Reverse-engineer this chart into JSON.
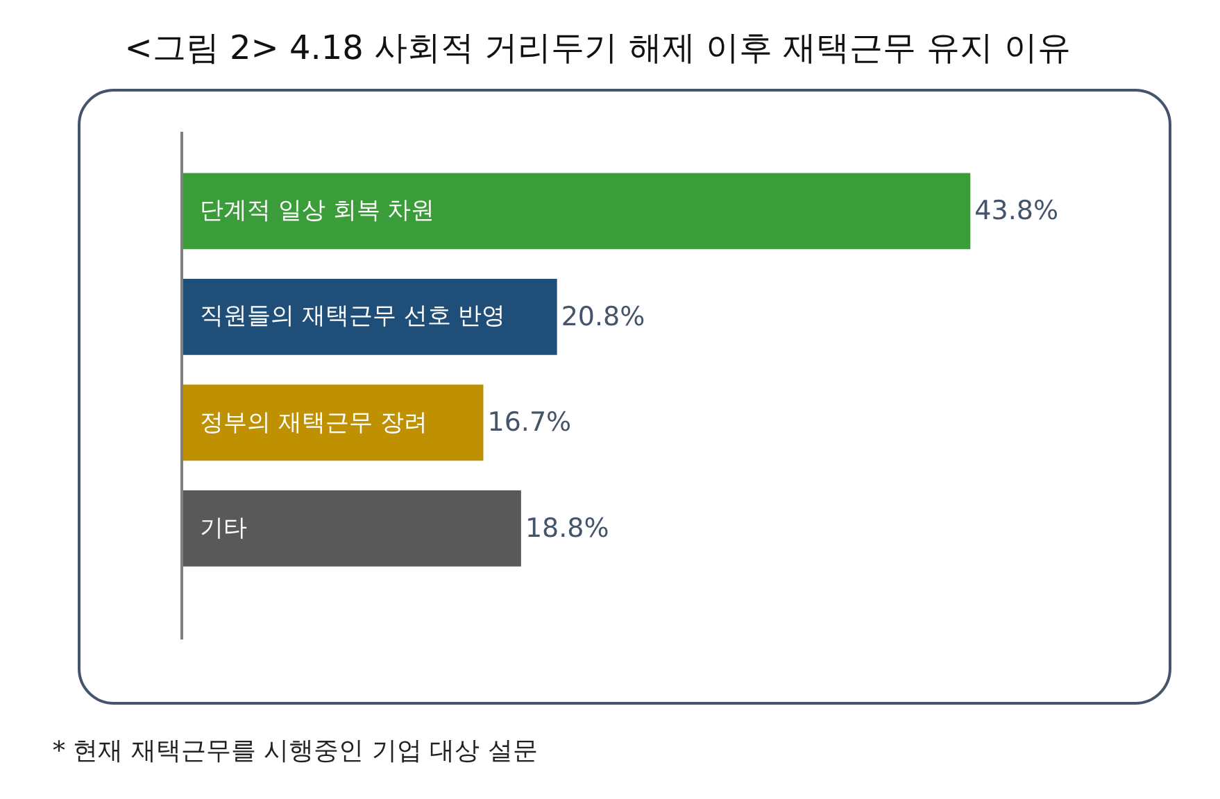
{
  "chart_data": {
    "type": "bar",
    "orientation": "horizontal",
    "title": "<그림 2> 4.18 사회적 거리두기 해제 이후 재택근무 유지 이유",
    "categories": [
      "단계적 일상 회복 차원",
      "직원들의 재택근무 선호 반영",
      "정부의 재택근무 장려",
      "기타"
    ],
    "values": [
      43.8,
      20.8,
      16.7,
      18.8
    ],
    "colors": [
      "#3a9d3a",
      "#1f4e79",
      "#bf9000",
      "#595959"
    ],
    "value_labels": [
      "43.8%",
      "20.8%",
      "16.7%",
      "18.8%"
    ],
    "grid": false,
    "legend": false,
    "annotations": [
      "* 현재 재택근무를 시행중인 기업 대상 설문"
    ]
  }
}
